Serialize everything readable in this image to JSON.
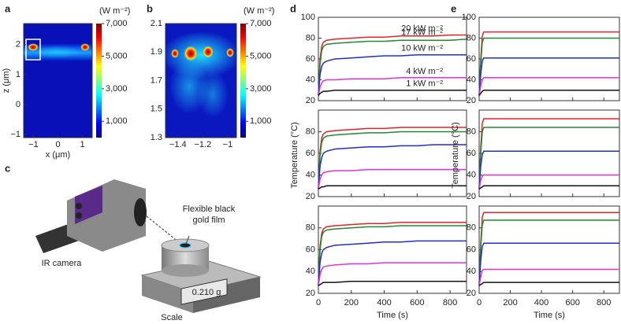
{
  "chart_data": [
    {
      "type": "heatmap",
      "label": "a",
      "xlabel": "x (μm)",
      "ylabel": "z (μm)",
      "xlim": [
        -1.4,
        1.4
      ],
      "ylim": [
        -1.1,
        2.7
      ],
      "xticks": [
        {
          "value": -1,
          "label": "−1"
        },
        0,
        1
      ],
      "yticks": [
        {
          "value": -1,
          "label": "−1"
        },
        0,
        1,
        2
      ],
      "colorbar_unit": "(W m⁻²)",
      "colorbar_lim": [
        0,
        7000
      ],
      "colorbar_ticks": [
        {
          "value": 1000,
          "label": "1,000"
        },
        {
          "value": 3000,
          "label": "3,000"
        },
        {
          "value": 5000,
          "label": "5,000"
        },
        {
          "value": 7000,
          "label": "7,000"
        }
      ]
    },
    {
      "type": "heatmap",
      "label": "b",
      "xlim": [
        -1.5,
        -0.93
      ],
      "ylim": [
        1.3,
        2.1
      ],
      "xticks": [
        {
          "value": -1.4,
          "label": "−1.4"
        },
        {
          "value": -1.2,
          "label": "−1.2"
        },
        {
          "value": -1,
          "label": "−1"
        }
      ],
      "yticks": [
        1.3,
        1.5,
        1.7,
        1.9,
        2.1
      ],
      "colorbar_unit": "(W m⁻²)",
      "colorbar_lim": [
        0,
        7000
      ],
      "colorbar_ticks": [
        {
          "value": 1000,
          "label": "1,000"
        },
        {
          "value": 3000,
          "label": "3,000"
        },
        {
          "value": 5000,
          "label": "5,000"
        },
        {
          "value": 7000,
          "label": "7,000"
        }
      ]
    },
    {
      "type": "line",
      "label": "d",
      "xlabel": "Time (s)",
      "ylabel": "Temperature (°C)",
      "xlim": [
        0,
        900
      ],
      "xticks": [
        0,
        200,
        400,
        600,
        800
      ],
      "x": [
        0,
        10,
        20,
        30,
        50,
        100,
        200,
        300,
        400,
        500,
        600,
        700,
        800,
        900
      ],
      "panels": [
        {
          "ylim": [
            20,
            100
          ],
          "yticks": [
            20,
            40,
            60,
            80,
            100
          ],
          "series": [
            {
              "name": "20 kW m⁻²",
              "color": "#e8202a",
              "values": [
                25,
                60,
                72,
                76,
                78,
                79,
                80,
                81,
                81,
                82,
                82,
                82,
                83,
                83
              ]
            },
            {
              "name": "17 kW m⁻²",
              "color": "#1f8a2e",
              "values": [
                25,
                55,
                68,
                72,
                74,
                75,
                76,
                77,
                77,
                78,
                78,
                78,
                78,
                79
              ]
            },
            {
              "name": "10 kW m⁻²",
              "color": "#1f2fc8",
              "values": [
                25,
                45,
                53,
                56,
                58,
                60,
                61,
                62,
                63,
                63,
                64,
                64,
                64,
                64
              ]
            },
            {
              "name": "4 kW m⁻²",
              "color": "#e030e0",
              "values": [
                25,
                33,
                37,
                39,
                40,
                40,
                41,
                41,
                41,
                42,
                42,
                42,
                42,
                42
              ]
            },
            {
              "name": "1 kW m⁻²",
              "color": "#111111",
              "values": [
                25,
                27,
                28,
                29,
                29,
                30,
                30,
                30,
                30,
                30,
                30,
                30,
                30,
                30
              ]
            }
          ]
        },
        {
          "ylim": [
            20,
            100
          ],
          "yticks": [
            20,
            40,
            60,
            80
          ],
          "series": [
            {
              "color": "#e8202a",
              "values": [
                27,
                62,
                74,
                78,
                80,
                81,
                82,
                83,
                83,
                84,
                84,
                84,
                84,
                84
              ]
            },
            {
              "color": "#1f8a2e",
              "values": [
                27,
                58,
                70,
                74,
                76,
                77,
                78,
                79,
                79,
                80,
                80,
                80,
                80,
                80
              ]
            },
            {
              "color": "#1f2fc8",
              "values": [
                27,
                48,
                56,
                60,
                62,
                64,
                65,
                66,
                66,
                67,
                67,
                68,
                68,
                68
              ]
            },
            {
              "color": "#e030e0",
              "values": [
                27,
                36,
                40,
                42,
                43,
                44,
                44,
                45,
                45,
                45,
                45,
                45,
                45,
                45
              ]
            },
            {
              "color": "#111111",
              "values": [
                27,
                28,
                29,
                29,
                30,
                30,
                30,
                30,
                30,
                30,
                30,
                30,
                30,
                30
              ]
            }
          ]
        },
        {
          "ylim": [
            20,
            100
          ],
          "yticks": [
            20,
            40,
            60,
            80
          ],
          "series": [
            {
              "color": "#e8202a",
              "values": [
                27,
                63,
                75,
                79,
                81,
                82,
                83,
                84,
                84,
                85,
                85,
                85,
                85,
                85
              ]
            },
            {
              "color": "#1f8a2e",
              "values": [
                27,
                60,
                72,
                76,
                78,
                79,
                80,
                81,
                81,
                82,
                82,
                82,
                82,
                82
              ]
            },
            {
              "color": "#1f2fc8",
              "values": [
                27,
                48,
                57,
                60,
                62,
                64,
                65,
                66,
                67,
                67,
                68,
                68,
                68,
                68
              ]
            },
            {
              "color": "#e030e0",
              "values": [
                27,
                37,
                42,
                44,
                45,
                46,
                47,
                47,
                48,
                48,
                48,
                48,
                48,
                48
              ]
            },
            {
              "color": "#111111",
              "values": [
                27,
                28,
                29,
                30,
                30,
                30,
                31,
                31,
                31,
                31,
                31,
                31,
                31,
                31
              ]
            }
          ]
        }
      ]
    },
    {
      "type": "line",
      "label": "e",
      "xlabel": "Time (s)",
      "ylabel": "Temperature (°C)",
      "xlim": [
        0,
        900
      ],
      "xticks": [
        0,
        200,
        400,
        600,
        800
      ],
      "x": [
        0,
        10,
        20,
        30,
        50,
        100,
        200,
        300,
        400,
        500,
        600,
        700,
        800,
        900
      ],
      "panels": [
        {
          "ylim": [
            20,
            100
          ],
          "yticks": [
            20,
            40,
            60,
            80,
            100
          ],
          "series": [
            {
              "color": "#e8202a",
              "values": [
                25,
                60,
                82,
                86,
                86,
                86,
                86,
                86,
                86,
                86,
                86,
                86,
                86,
                86
              ]
            },
            {
              "color": "#1f8a2e",
              "values": [
                25,
                56,
                76,
                80,
                80,
                80,
                80,
                80,
                80,
                80,
                80,
                80,
                80,
                80
              ]
            },
            {
              "color": "#1f2fc8",
              "values": [
                25,
                45,
                58,
                61,
                61,
                61,
                61,
                61,
                61,
                61,
                61,
                61,
                61,
                61
              ]
            },
            {
              "color": "#e030e0",
              "values": [
                25,
                34,
                40,
                42,
                42,
                42,
                42,
                42,
                42,
                42,
                42,
                42,
                42,
                42
              ]
            },
            {
              "color": "#111111",
              "values": [
                25,
                27,
                29,
                30,
                30,
                30,
                30,
                30,
                30,
                30,
                30,
                30,
                30,
                30
              ]
            }
          ]
        },
        {
          "ylim": [
            20,
            100
          ],
          "yticks": [
            20,
            40,
            60,
            80
          ],
          "series": [
            {
              "color": "#e8202a",
              "values": [
                27,
                65,
                88,
                92,
                92,
                92,
                92,
                92,
                92,
                92,
                92,
                92,
                92,
                92
              ]
            },
            {
              "color": "#1f8a2e",
              "values": [
                27,
                60,
                80,
                84,
                84,
                84,
                84,
                84,
                84,
                84,
                84,
                84,
                84,
                84
              ]
            },
            {
              "color": "#1f2fc8",
              "values": [
                27,
                48,
                59,
                62,
                62,
                62,
                62,
                62,
                62,
                62,
                62,
                62,
                62,
                62
              ]
            },
            {
              "color": "#e030e0",
              "values": [
                27,
                35,
                39,
                40,
                40,
                40,
                40,
                40,
                40,
                40,
                40,
                40,
                40,
                40
              ]
            },
            {
              "color": "#111111",
              "values": [
                27,
                28,
                29,
                30,
                30,
                30,
                30,
                30,
                30,
                30,
                30,
                30,
                30,
                30
              ]
            }
          ]
        },
        {
          "ylim": [
            20,
            100
          ],
          "yticks": [
            20,
            40,
            60,
            80
          ],
          "series": [
            {
              "color": "#e8202a",
              "values": [
                27,
                66,
                90,
                94,
                94,
                94,
                94,
                94,
                94,
                94,
                94,
                94,
                94,
                94
              ]
            },
            {
              "color": "#1f8a2e",
              "values": [
                27,
                62,
                83,
                87,
                87,
                87,
                87,
                87,
                87,
                87,
                87,
                87,
                87,
                87
              ]
            },
            {
              "color": "#1f2fc8",
              "values": [
                27,
                50,
                63,
                66,
                66,
                66,
                66,
                66,
                66,
                66,
                66,
                66,
                66,
                66
              ]
            },
            {
              "color": "#e030e0",
              "values": [
                27,
                35,
                41,
                42,
                42,
                42,
                42,
                42,
                42,
                42,
                42,
                42,
                42,
                42
              ]
            },
            {
              "color": "#111111",
              "values": [
                27,
                28,
                29,
                30,
                30,
                30,
                30,
                30,
                30,
                30,
                30,
                30,
                30,
                30
              ]
            }
          ]
        }
      ]
    }
  ],
  "illustration": {
    "label": "c",
    "film_label": [
      "Flexible black",
      "gold film"
    ],
    "camera_label": "IR camera",
    "scale_label": "Scale",
    "display": "0.210 g"
  }
}
